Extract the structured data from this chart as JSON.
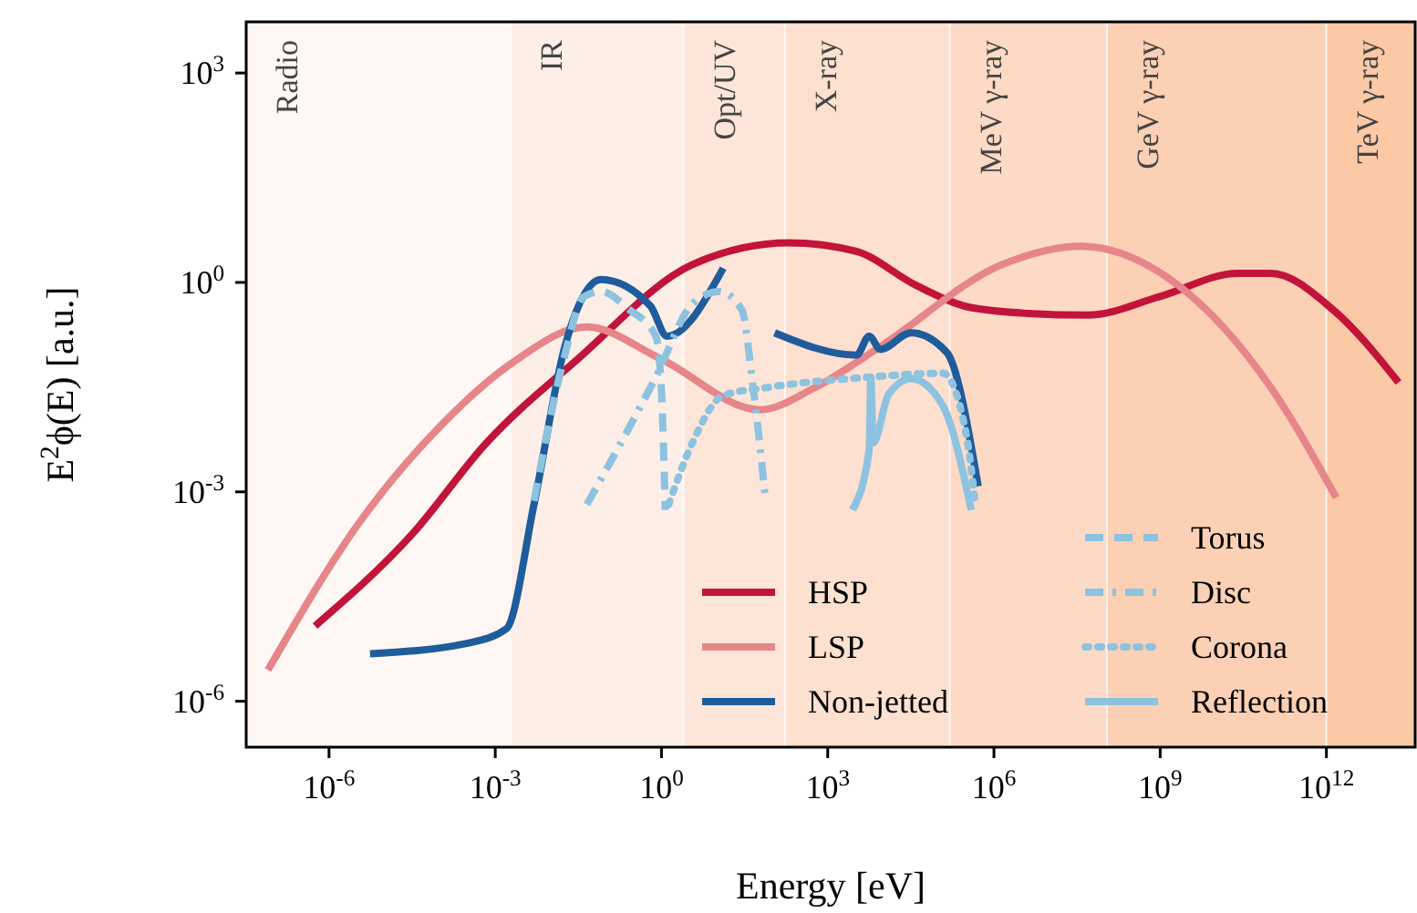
{
  "chart_data": {
    "type": "line",
    "xlabel": "Energy [eV]",
    "ylabel": "E$^{2}$ϕ(E) [a.u.]",
    "log": "xy",
    "grid": false,
    "legend": "bottom right",
    "xlim": [
      3.2e-08,
      40000000000000.0
    ],
    "ylim": [
      2.2e-07,
      5400
    ],
    "xticks": [
      {
        "value": 1e-06,
        "label": "10$^{-6}$"
      },
      {
        "value": 0.001,
        "label": "10$^{-3}$"
      },
      {
        "value": 1,
        "label": "10$^{0}$"
      },
      {
        "value": 1000.0,
        "label": "10$^{3}$"
      },
      {
        "value": 1000000.0,
        "label": "10$^{6}$"
      },
      {
        "value": 1000000000.0,
        "label": "10$^{9}$"
      },
      {
        "value": 1000000000000.0,
        "label": "10$^{12}$"
      }
    ],
    "yticks": [
      {
        "value": 1e-06,
        "label": "10$^{-6}$"
      },
      {
        "value": 0.001,
        "label": "10$^{-3}$"
      },
      {
        "value": 1,
        "label": "10$^{0}$"
      },
      {
        "value": 1000.0,
        "label": "10$^{3}$"
      }
    ],
    "bands": [
      {
        "axis": "x",
        "from": 3.2e-08,
        "to": 0.0019,
        "label": "Radio",
        "color": "#fef7f3"
      },
      {
        "axis": "x",
        "from": 0.0019,
        "to": 2.5,
        "label": "IR",
        "color": "#fdefe7"
      },
      {
        "axis": "x",
        "from": 2.5,
        "to": 170,
        "label": "Opt/UV",
        "color": "#fde6d9"
      },
      {
        "axis": "x",
        "from": 170,
        "to": 160000.0,
        "label": "X-ray",
        "color": "#fde0cf"
      },
      {
        "axis": "x",
        "from": 160000.0,
        "to": 110000000.0,
        "label": "MeV γ-ray",
        "color": "#fddac5"
      },
      {
        "axis": "x",
        "from": 110000000.0,
        "to": 1000000000000.0,
        "label": "GeV γ-ray",
        "color": "#fcd0b4"
      },
      {
        "axis": "x",
        "from": 1000000000000.0,
        "to": 40000000000000.0,
        "label": "TeV γ-ray",
        "color": "#fbc9a6"
      }
    ],
    "series": [
      {
        "name": "HSP",
        "color": "#c2143a",
        "line_style": "solid",
        "x": [
          5.6e-07,
          3.2e-05,
          0.00069,
          0.031,
          3.6,
          200,
          3200,
          40000.0,
          320000.0,
          4000000.0,
          50000000.0,
          1000000000.0,
          25000000000.0,
          100000000000.0,
          1300000000000.0,
          20000000000000.0
        ],
        "values": [
          1.2e-05,
          0.00025,
          0.005,
          0.08,
          1.8,
          3.7,
          2.8,
          0.9,
          0.45,
          0.36,
          0.34,
          0.63,
          1.35,
          1.35,
          0.41,
          0.037
        ]
      },
      {
        "name": "LSP",
        "color": "#e6858a",
        "line_style": "solid",
        "x": [
          7.9e-08,
          3.5e-06,
          0.00011,
          0.0019,
          0.045,
          1,
          60,
          580,
          8900,
          1400000.0,
          37000000.0,
          2200000000.0,
          100000000000.0,
          1500000000000.0
        ],
        "values": [
          2.8e-06,
          0.00036,
          0.0093,
          0.068,
          0.23,
          0.079,
          0.015,
          0.031,
          0.12,
          1.8,
          3.3,
          0.89,
          0.031,
          0.00083
        ]
      },
      {
        "name": "Non-jetted",
        "color": "#1f5c9c",
        "line_style": "solid",
        "x": [
          5.5e-06,
          0.00032,
          0.0016,
          0.005,
          0.018,
          0.033,
          0.081,
          0.63,
          1.26,
          13,
          60,
          110,
          3300,
          5600,
          8900,
          32000.0,
          140000.0,
          520000.0
        ],
        "values": [
          4.8e-06,
          6.8e-06,
          1.1e-05,
          0.00066,
          0.12,
          0.49,
          1.1,
          0.46,
          0.17,
          1.6,
          null,
          0.19,
          0.091,
          0.17,
          0.11,
          0.19,
          0.1,
          0.0012
        ]
      },
      {
        "name": "Torus",
        "color": "#8dc3e0",
        "line_style": "dashed",
        "x": [
          0.005,
          0.018,
          0.039,
          0.081,
          0.26,
          0.79,
          1,
          1.17
        ],
        "values": [
          0.00074,
          0.091,
          0.62,
          0.74,
          0.41,
          0.17,
          0.027,
          0.00055
        ]
      },
      {
        "name": "Disc",
        "color": "#8dc3e0",
        "line_style": "dashdot",
        "x": [
          0.045,
          0.79,
          3.6,
          11,
          28,
          44,
          76
        ],
        "values": [
          0.00066,
          0.044,
          0.49,
          0.74,
          0.41,
          0.037,
          0.00074
        ]
      },
      {
        "name": "Corona",
        "color": "#8dc3e0",
        "line_style": "dotted",
        "x": [
          1.35,
          3.6,
          13,
          76,
          5600,
          120000.0,
          320000.0,
          460000.0
        ],
        "values": [
          0.00066,
          0.005,
          0.024,
          0.031,
          0.044,
          0.05,
          0.0063,
          0.00066
        ]
      },
      {
        "name": "Reflection",
        "color": "#8dc3e0",
        "line_style": "solid",
        "x": [
          2800,
          5600,
          6000,
          6600,
          12600.0,
          32000.0,
          120000.0,
          390000.0
        ],
        "values": [
          0.00055,
          0.004,
          0.044,
          0.005,
          0.025,
          0.042,
          0.017,
          0.00055
        ]
      }
    ]
  }
}
